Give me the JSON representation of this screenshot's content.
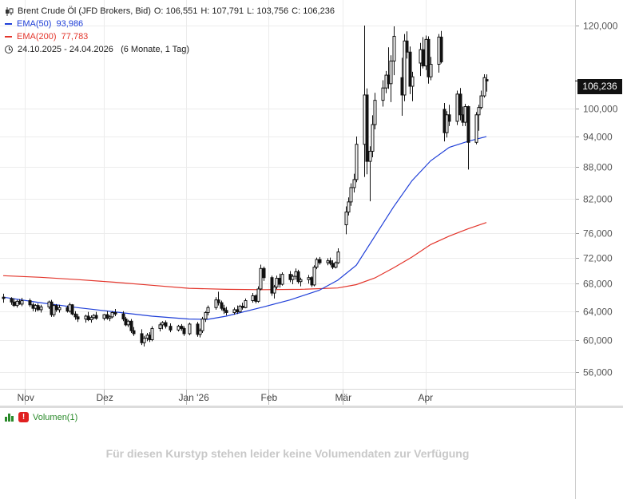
{
  "header": {
    "instrument": "Brent Crude Öl (JFD Brokers, Bid)",
    "open": "O: 106,551",
    "high": "H: 107,791",
    "low": "L: 103,756",
    "close": "C: 106,236",
    "ema50_label": "EMA(50)",
    "ema50_value": "93,986",
    "ema200_label": "EMA(200)",
    "ema200_value": "77,783",
    "range": "24.10.2025 - 24.04.2026",
    "period": "(6 Monate, 1 Tag)"
  },
  "last_price": "106,236",
  "volume": {
    "label": "Volumen(1)",
    "message": "Für diesen Kurstyp stehen leider keine Volumendaten zur Verfügung"
  },
  "colors": {
    "candle": "#111111",
    "ema50": "#1f3fd8",
    "ema200": "#e3352b",
    "grid": "#ececec",
    "volume_icon": "#2a8a2a",
    "warning": "#e02020"
  },
  "chart_data": {
    "type": "candlestick",
    "y_scale": "log",
    "ylim": [
      53,
      123
    ],
    "y_ticks": [
      56,
      60,
      64,
      68,
      72,
      76,
      82,
      88,
      94,
      100,
      120
    ],
    "y_tick_labels": [
      "56,000",
      "60,000",
      "64,000",
      "68,000",
      "72,000",
      "76,000",
      "82,000",
      "88,000",
      "94,000",
      "100,000",
      "120,000"
    ],
    "x_ticks": [
      {
        "label": "Nov",
        "date": "2025-11-01"
      },
      {
        "label": "Dez",
        "date": "2025-12-01"
      },
      {
        "label": "Jan '26",
        "date": "2026-01-01"
      },
      {
        "label": "Feb",
        "date": "2026-02-01"
      },
      {
        "label": "Mär",
        "date": "2026-03-01"
      },
      {
        "label": "Apr",
        "date": "2026-04-01"
      }
    ],
    "x_start": "2025-10-24",
    "x_end": "2026-04-24",
    "candles": [
      [
        "2025-10-24",
        66.0,
        66.5,
        65.2,
        65.8
      ],
      [
        "2025-10-27",
        65.8,
        66.0,
        64.9,
        65.3
      ],
      [
        "2025-10-28",
        65.3,
        65.8,
        64.6,
        64.8
      ],
      [
        "2025-10-29",
        64.8,
        65.6,
        64.5,
        65.4
      ],
      [
        "2025-10-30",
        65.4,
        65.7,
        64.9,
        65.0
      ],
      [
        "2025-10-31",
        65.0,
        65.9,
        64.7,
        65.5
      ],
      [
        "2025-11-03",
        65.5,
        65.8,
        64.6,
        64.9
      ],
      [
        "2025-11-04",
        64.9,
        65.2,
        64.0,
        64.4
      ],
      [
        "2025-11-05",
        64.4,
        65.0,
        63.9,
        64.8
      ],
      [
        "2025-11-06",
        64.8,
        65.1,
        64.0,
        64.2
      ],
      [
        "2025-11-07",
        64.2,
        64.9,
        63.8,
        64.6
      ],
      [
        "2025-11-10",
        64.6,
        65.5,
        64.3,
        65.3
      ],
      [
        "2025-11-11",
        65.3,
        65.6,
        63.2,
        63.5
      ],
      [
        "2025-11-12",
        63.5,
        65.0,
        63.2,
        64.8
      ],
      [
        "2025-11-13",
        64.8,
        65.0,
        63.9,
        64.2
      ],
      [
        "2025-11-14",
        64.2,
        64.9,
        63.8,
        64.5
      ],
      [
        "2025-11-17",
        64.5,
        64.8,
        63.8,
        64.0
      ],
      [
        "2025-11-18",
        64.0,
        65.2,
        63.8,
        64.9
      ],
      [
        "2025-11-19",
        64.9,
        65.0,
        63.4,
        63.6
      ],
      [
        "2025-11-20",
        63.6,
        64.0,
        62.8,
        63.2
      ],
      [
        "2025-11-21",
        63.2,
        63.6,
        62.5,
        62.9
      ],
      [
        "2025-11-24",
        62.9,
        63.5,
        62.4,
        63.3
      ],
      [
        "2025-11-25",
        63.3,
        63.9,
        62.6,
        62.8
      ],
      [
        "2025-11-26",
        62.8,
        63.4,
        62.4,
        63.1
      ],
      [
        "2025-11-27",
        63.1,
        63.6,
        62.9,
        63.4
      ],
      [
        "2025-11-28",
        63.4,
        63.9,
        62.8,
        63.0
      ],
      [
        "2025-12-01",
        63.0,
        63.6,
        62.7,
        63.5
      ],
      [
        "2025-12-02",
        63.5,
        64.0,
        62.8,
        63.0
      ],
      [
        "2025-12-03",
        63.0,
        63.4,
        62.6,
        63.2
      ],
      [
        "2025-12-04",
        63.2,
        64.0,
        63.0,
        63.8
      ],
      [
        "2025-12-05",
        63.8,
        64.3,
        63.3,
        63.6
      ],
      [
        "2025-12-08",
        63.6,
        64.0,
        62.6,
        62.9
      ],
      [
        "2025-12-09",
        62.9,
        63.2,
        61.9,
        62.1
      ],
      [
        "2025-12-10",
        62.1,
        62.8,
        61.8,
        62.6
      ],
      [
        "2025-12-11",
        62.6,
        62.9,
        61.0,
        61.3
      ],
      [
        "2025-12-12",
        61.3,
        61.8,
        60.6,
        60.9
      ],
      [
        "2025-12-15",
        60.9,
        61.5,
        59.4,
        59.7
      ],
      [
        "2025-12-16",
        59.7,
        60.6,
        59.2,
        60.3
      ],
      [
        "2025-12-17",
        60.3,
        61.0,
        59.9,
        60.7
      ],
      [
        "2025-12-18",
        60.7,
        61.1,
        59.8,
        60.1
      ],
      [
        "2025-12-19",
        60.1,
        61.9,
        59.9,
        61.6
      ],
      [
        "2025-12-22",
        61.6,
        62.4,
        61.2,
        62.1
      ],
      [
        "2025-12-23",
        62.1,
        62.6,
        61.5,
        62.4
      ],
      [
        "2025-12-24",
        62.4,
        62.7,
        61.6,
        61.9
      ],
      [
        "2025-12-26",
        61.9,
        62.3,
        61.1,
        61.4
      ],
      [
        "2025-12-29",
        61.4,
        62.1,
        61.2,
        61.9
      ],
      [
        "2025-12-30",
        61.9,
        62.2,
        61.3,
        61.6
      ],
      [
        "2025-12-31",
        61.6,
        61.9,
        60.6,
        60.9
      ],
      [
        "2026-01-02",
        60.9,
        62.4,
        60.7,
        62.2
      ],
      [
        "2026-01-05",
        62.2,
        62.5,
        60.5,
        60.8
      ],
      [
        "2026-01-06",
        60.8,
        61.6,
        60.4,
        61.3
      ],
      [
        "2026-01-07",
        61.3,
        63.2,
        61.0,
        62.9
      ],
      [
        "2026-01-08",
        62.9,
        64.0,
        62.5,
        63.8
      ],
      [
        "2026-01-09",
        63.8,
        64.8,
        63.4,
        64.5
      ],
      [
        "2026-01-12",
        64.5,
        66.0,
        64.2,
        65.6
      ],
      [
        "2026-01-13",
        65.6,
        66.8,
        64.8,
        65.2
      ],
      [
        "2026-01-14",
        65.2,
        65.5,
        64.1,
        64.4
      ],
      [
        "2026-01-15",
        64.4,
        64.9,
        63.6,
        64.1
      ],
      [
        "2026-01-16",
        64.1,
        64.6,
        63.4,
        63.8
      ],
      [
        "2026-01-19",
        63.8,
        64.5,
        63.5,
        64.2
      ],
      [
        "2026-01-20",
        64.2,
        64.8,
        63.6,
        63.9
      ],
      [
        "2026-01-21",
        63.9,
        64.9,
        63.8,
        64.7
      ],
      [
        "2026-01-22",
        64.7,
        65.2,
        64.2,
        64.5
      ],
      [
        "2026-01-23",
        64.5,
        65.8,
        64.4,
        65.5
      ],
      [
        "2026-01-26",
        65.5,
        66.6,
        65.2,
        66.2
      ],
      [
        "2026-01-27",
        66.2,
        66.4,
        65.1,
        65.4
      ],
      [
        "2026-01-28",
        65.4,
        67.6,
        65.2,
        67.2
      ],
      [
        "2026-01-29",
        67.2,
        70.9,
        67.0,
        70.3
      ],
      [
        "2026-01-30",
        70.3,
        70.6,
        68.4,
        68.9
      ],
      [
        "2026-02-02",
        68.9,
        69.2,
        66.2,
        66.6
      ],
      [
        "2026-02-03",
        66.6,
        67.8,
        65.8,
        67.5
      ],
      [
        "2026-02-04",
        67.5,
        69.2,
        67.2,
        68.8
      ],
      [
        "2026-02-05",
        68.8,
        69.5,
        67.4,
        67.9
      ],
      [
        "2026-02-06",
        67.9,
        69.7,
        67.7,
        69.4
      ],
      [
        "2026-02-09",
        69.4,
        69.9,
        68.2,
        68.6
      ],
      [
        "2026-02-10",
        68.6,
        69.4,
        67.9,
        69.1
      ],
      [
        "2026-02-11",
        69.1,
        70.3,
        68.6,
        69.8
      ],
      [
        "2026-02-12",
        69.8,
        70.1,
        68.0,
        68.3
      ],
      [
        "2026-02-13",
        68.3,
        68.9,
        67.6,
        68.6
      ],
      [
        "2026-02-16",
        68.6,
        69.3,
        68.0,
        68.9
      ],
      [
        "2026-02-17",
        68.9,
        69.1,
        67.5,
        67.8
      ],
      [
        "2026-02-18",
        67.8,
        70.8,
        67.6,
        70.5
      ],
      [
        "2026-02-19",
        70.5,
        72.0,
        70.2,
        71.7
      ],
      [
        "2026-02-20",
        71.7,
        72.1,
        70.9,
        71.2
      ],
      [
        "2026-02-23",
        71.2,
        71.9,
        70.8,
        71.5
      ],
      [
        "2026-02-24",
        71.5,
        72.0,
        70.8,
        71.1
      ],
      [
        "2026-02-25",
        71.1,
        71.6,
        70.2,
        70.5
      ],
      [
        "2026-02-26",
        70.5,
        71.4,
        70.3,
        71.2
      ],
      [
        "2026-02-27",
        71.2,
        73.5,
        71.0,
        72.9
      ],
      [
        "2026-03-02",
        77.4,
        80.6,
        75.8,
        79.6
      ],
      [
        "2026-03-03",
        79.6,
        82.2,
        79.0,
        81.4
      ],
      [
        "2026-03-04",
        81.4,
        84.8,
        80.7,
        84.0
      ],
      [
        "2026-03-05",
        84.0,
        86.6,
        83.1,
        85.5
      ],
      [
        "2026-03-06",
        85.5,
        94.0,
        85.0,
        92.4
      ],
      [
        "2026-03-09",
        92.4,
        120.0,
        86.0,
        103.0
      ],
      [
        "2026-03-10",
        103.0,
        104.5,
        86.5,
        89.0
      ],
      [
        "2026-03-11",
        89.0,
        92.0,
        81.5,
        91.0
      ],
      [
        "2026-03-12",
        91.0,
        98.5,
        89.8,
        96.5
      ],
      [
        "2026-03-13",
        96.5,
        103.5,
        95.5,
        101.8
      ],
      [
        "2026-03-16",
        101.8,
        106.4,
        100.4,
        104.6
      ],
      [
        "2026-03-17",
        104.6,
        108.6,
        103.4,
        107.6
      ],
      [
        "2026-03-18",
        107.6,
        114.4,
        104.4,
        105.6
      ],
      [
        "2026-03-19",
        105.6,
        112.4,
        101.4,
        111.0
      ],
      [
        "2026-03-20",
        111.0,
        119.8,
        107.6,
        117.2
      ],
      [
        "2026-03-23",
        107.0,
        111.8,
        98.4,
        103.0
      ],
      [
        "2026-03-24",
        103.0,
        117.8,
        101.6,
        116.0
      ],
      [
        "2026-03-25",
        116.0,
        118.5,
        111.6,
        113.2
      ],
      [
        "2026-03-26",
        113.2,
        114.6,
        103.2,
        105.0
      ],
      [
        "2026-03-27",
        105.0,
        108.4,
        101.6,
        107.2
      ],
      [
        "2026-03-30",
        110.5,
        115.5,
        107.4,
        113.8
      ],
      [
        "2026-03-31",
        113.8,
        117.0,
        109.2,
        109.8
      ],
      [
        "2026-04-01",
        109.8,
        117.4,
        108.8,
        116.4
      ],
      [
        "2026-04-02",
        116.4,
        117.2,
        105.6,
        107.2
      ],
      [
        "2026-04-03",
        107.2,
        112.0,
        106.4,
        110.2
      ],
      [
        "2026-04-06",
        110.2,
        117.8,
        108.2,
        117.0
      ],
      [
        "2026-04-07",
        117.0,
        118.6,
        110.4,
        110.8
      ],
      [
        "2026-04-08",
        99.8,
        101.2,
        93.0,
        94.8
      ],
      [
        "2026-04-09",
        94.8,
        99.4,
        93.8,
        98.6
      ],
      [
        "2026-04-10",
        98.6,
        100.8,
        96.2,
        97.2
      ],
      [
        "2026-04-13",
        97.2,
        104.0,
        96.4,
        103.2
      ],
      [
        "2026-04-14",
        103.2,
        104.6,
        97.4,
        98.6
      ],
      [
        "2026-04-15",
        98.6,
        100.4,
        96.2,
        97.0
      ],
      [
        "2026-04-16",
        97.0,
        101.0,
        96.2,
        100.4
      ],
      [
        "2026-04-17",
        100.4,
        100.6,
        87.4,
        92.8
      ],
      [
        "2026-04-20",
        92.8,
        99.2,
        92.4,
        98.6
      ],
      [
        "2026-04-21",
        98.6,
        100.8,
        95.2,
        100.2
      ],
      [
        "2026-04-22",
        100.2,
        104.0,
        99.8,
        102.8
      ],
      [
        "2026-04-23",
        102.8,
        107.8,
        102.4,
        107.0
      ],
      [
        "2026-04-24",
        106.551,
        107.791,
        103.756,
        106.236
      ]
    ],
    "ema50": [
      [
        "2025-10-24",
        66.0
      ],
      [
        "2025-11-07",
        65.2
      ],
      [
        "2025-11-21",
        64.5
      ],
      [
        "2025-12-05",
        63.9
      ],
      [
        "2025-12-19",
        63.3
      ],
      [
        "2026-01-02",
        62.9
      ],
      [
        "2026-01-09",
        62.85
      ],
      [
        "2026-01-16",
        63.3
      ],
      [
        "2026-01-30",
        64.6
      ],
      [
        "2026-02-09",
        65.6
      ],
      [
        "2026-02-20",
        67.0
      ],
      [
        "2026-02-27",
        68.5
      ],
      [
        "2026-03-06",
        70.8
      ],
      [
        "2026-03-13",
        75.5
      ],
      [
        "2026-03-20",
        80.5
      ],
      [
        "2026-03-27",
        85.3
      ],
      [
        "2026-04-03",
        89.1
      ],
      [
        "2026-04-10",
        91.8
      ],
      [
        "2026-04-17",
        93.0
      ],
      [
        "2026-04-24",
        93.986
      ]
    ],
    "ema200": [
      [
        "2025-10-24",
        69.2
      ],
      [
        "2025-11-07",
        68.95
      ],
      [
        "2025-11-21",
        68.6
      ],
      [
        "2025-12-05",
        68.2
      ],
      [
        "2025-12-19",
        67.75
      ],
      [
        "2026-01-02",
        67.3
      ],
      [
        "2026-01-16",
        67.15
      ],
      [
        "2026-01-30",
        67.1
      ],
      [
        "2026-02-13",
        67.15
      ],
      [
        "2026-02-27",
        67.35
      ],
      [
        "2026-03-06",
        67.85
      ],
      [
        "2026-03-13",
        68.85
      ],
      [
        "2026-03-20",
        70.4
      ],
      [
        "2026-03-27",
        72.1
      ],
      [
        "2026-04-03",
        74.1
      ],
      [
        "2026-04-10",
        75.5
      ],
      [
        "2026-04-17",
        76.7
      ],
      [
        "2026-04-24",
        77.783
      ]
    ]
  }
}
